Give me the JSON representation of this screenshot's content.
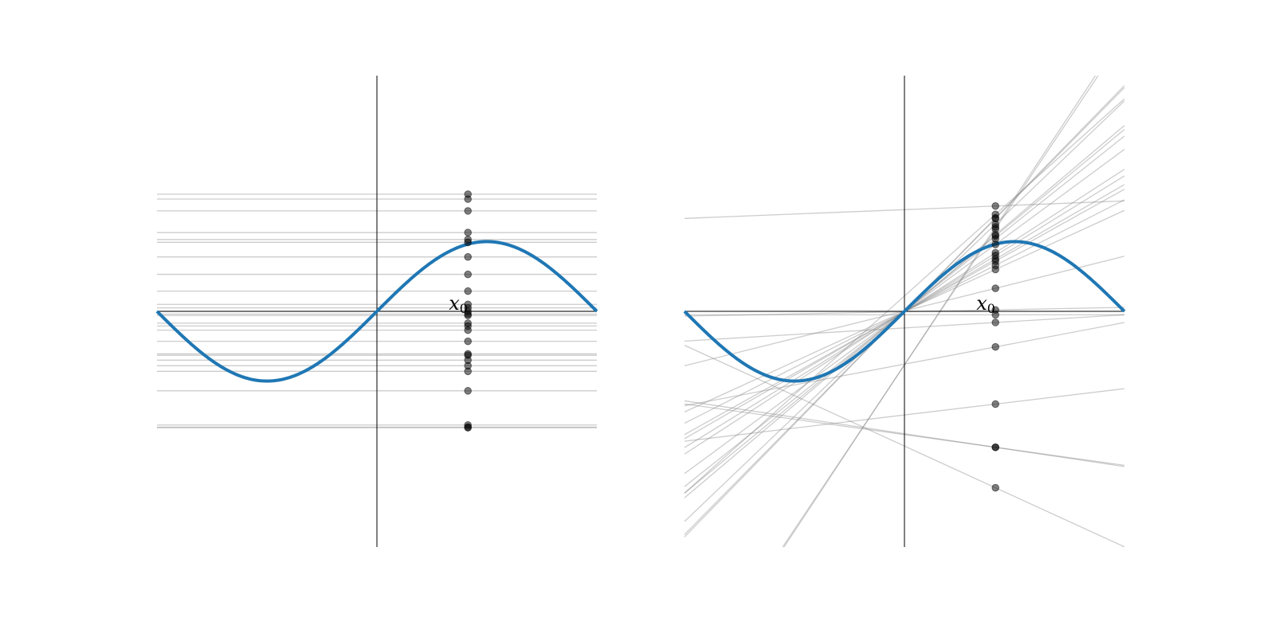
{
  "chart_data": [
    {
      "type": "line",
      "panel": "left",
      "curve": {
        "function": "sin(x)",
        "x_range": [
          -3.14159,
          3.14159
        ],
        "color": "#1f77b4"
      },
      "xlim": [
        -3.14159,
        3.14159
      ],
      "ylim": [
        -3.38,
        3.38
      ],
      "axes_through_origin": true,
      "grid": false,
      "x0": 1.3,
      "x0_label": "x",
      "x0_subscript": "0",
      "fit_order": 0,
      "point_color": "#000000",
      "line_color": "#808080",
      "samples": [
        {
          "y": 1.68,
          "slope": 0
        },
        {
          "y": 1.61,
          "slope": 0
        },
        {
          "y": 1.44,
          "slope": 0
        },
        {
          "y": 1.13,
          "slope": 0
        },
        {
          "y": 1.03,
          "slope": 0
        },
        {
          "y": 0.99,
          "slope": 0
        },
        {
          "y": 0.78,
          "slope": 0
        },
        {
          "y": 0.53,
          "slope": 0
        },
        {
          "y": 0.29,
          "slope": 0
        },
        {
          "y": 0.1,
          "slope": 0
        },
        {
          "y": 0.05,
          "slope": 0
        },
        {
          "y": 0.0,
          "slope": 0
        },
        {
          "y": -0.04,
          "slope": 0
        },
        {
          "y": -0.06,
          "slope": 0
        },
        {
          "y": -0.17,
          "slope": 0
        },
        {
          "y": -0.21,
          "slope": 0
        },
        {
          "y": -0.27,
          "slope": 0
        },
        {
          "y": -0.43,
          "slope": 0
        },
        {
          "y": -0.61,
          "slope": 0
        },
        {
          "y": -0.63,
          "slope": 0
        },
        {
          "y": -0.7,
          "slope": 0
        },
        {
          "y": -0.78,
          "slope": 0
        },
        {
          "y": -0.86,
          "slope": 0
        },
        {
          "y": -1.14,
          "slope": 0
        },
        {
          "y": -1.63,
          "slope": 0
        },
        {
          "y": -1.66,
          "slope": 0
        },
        {
          "y": -1.67,
          "slope": 0
        }
      ]
    },
    {
      "type": "line",
      "panel": "right",
      "curve": {
        "function": "sin(x)",
        "x_range": [
          -3.14159,
          3.14159
        ],
        "color": "#1f77b4"
      },
      "xlim": [
        -3.14159,
        3.14159
      ],
      "ylim": [
        -3.38,
        3.38
      ],
      "axes_through_origin": true,
      "grid": false,
      "x0": 1.3,
      "x0_label": "x",
      "x0_subscript": "0",
      "fit_order": 1,
      "point_color": "#000000",
      "line_color": "#808080",
      "samples": [
        {
          "y": 1.51,
          "slope": 0.04
        },
        {
          "y": 1.39,
          "slope": 0.9
        },
        {
          "y": 1.34,
          "slope": 1.03
        },
        {
          "y": 1.33,
          "slope": 1.02
        },
        {
          "y": 1.25,
          "slope": 0.96
        },
        {
          "y": 1.1,
          "slope": 0.85
        },
        {
          "y": 1.08,
          "slope": 0.83
        },
        {
          "y": 1.04,
          "slope": 0.8
        },
        {
          "y": 0.96,
          "slope": 0.74
        },
        {
          "y": 0.84,
          "slope": 0.65
        },
        {
          "y": 0.8,
          "slope": 0.62
        },
        {
          "y": 0.75,
          "slope": 0.58
        },
        {
          "y": 0.72,
          "slope": 0.56
        },
        {
          "y": 0.66,
          "slope": 0.51
        },
        {
          "y": 0.6,
          "slope": 0.46
        },
        {
          "y": 0.33,
          "slope": 0.25
        },
        {
          "y": 0.02,
          "slope": 0.02
        },
        {
          "y": -0.05,
          "slope": 0.0
        },
        {
          "y": -0.16,
          "slope": 0.06
        },
        {
          "y": -0.51,
          "slope": 0.19
        },
        {
          "y": -1.33,
          "slope": 0.12
        },
        {
          "y": -1.95,
          "slope": -0.14
        },
        {
          "y": -1.95,
          "slope": -0.15
        },
        {
          "y": -2.53,
          "slope": -0.46
        },
        {
          "y": 1.18,
          "slope": 1.5
        },
        {
          "y": 1.21,
          "slope": 1.52
        }
      ]
    }
  ]
}
